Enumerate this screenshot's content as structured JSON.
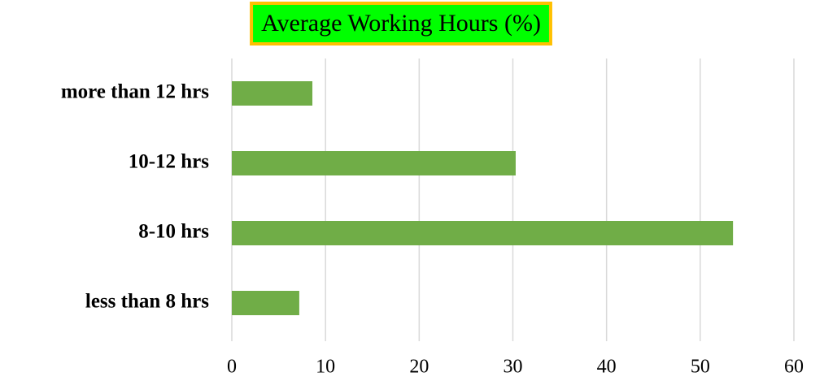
{
  "chart_data": {
    "type": "bar",
    "orientation": "horizontal",
    "title": "Average Working Hours (%)",
    "categories": [
      "less than 8 hrs",
      "8-10 hrs",
      "10-12 hrs",
      "more than 12 hrs"
    ],
    "values": [
      7.2,
      53.5,
      30.3,
      8.6
    ],
    "color": "#70ad47",
    "xlim": [
      0,
      60
    ],
    "xticks": [
      0,
      10,
      20,
      30,
      40,
      50,
      60
    ],
    "grid": true
  }
}
